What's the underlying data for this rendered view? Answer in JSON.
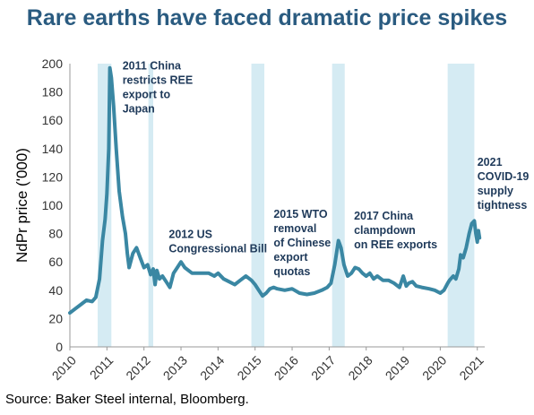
{
  "title": "Rare earths have faced dramatic price spikes",
  "source": "Source: Baker Steel internal, Bloomberg.",
  "chart_data": {
    "type": "line",
    "title": "Rare earths have faced dramatic price spikes",
    "xlabel": "",
    "ylabel": "NdPr price ('000)",
    "xlim": [
      2010,
      2021.2
    ],
    "ylim": [
      0,
      200
    ],
    "y_ticks": [
      0,
      20,
      40,
      60,
      80,
      100,
      120,
      140,
      160,
      180,
      200
    ],
    "x_ticks": [
      "2010",
      "2011",
      "2012",
      "2013",
      "2014",
      "2015",
      "2016",
      "2017",
      "2018",
      "2019",
      "2020",
      "2021"
    ],
    "grid": false,
    "line_color": "#3a87a3",
    "band_color": "#d5ebf3",
    "series": [
      {
        "x": [
          2010.0,
          2010.15,
          2010.3,
          2010.45,
          2010.6,
          2010.7,
          2010.8,
          2010.88,
          2010.95,
          2011.0,
          2011.05,
          2011.08,
          2011.12,
          2011.18,
          2011.25,
          2011.33,
          2011.42,
          2011.5,
          2011.55,
          2011.6,
          2011.7,
          2011.8,
          2011.9,
          2012.0,
          2012.1,
          2012.18,
          2012.25,
          2012.3,
          2012.35,
          2012.42,
          2012.5,
          2012.6,
          2012.7,
          2012.8,
          2012.9,
          2013.0,
          2013.1,
          2013.2,
          2013.3,
          2013.45,
          2013.6,
          2013.75,
          2013.9,
          2014.0,
          2014.15,
          2014.3,
          2014.45,
          2014.6,
          2014.75,
          2014.9,
          2015.0,
          2015.1,
          2015.2,
          2015.3,
          2015.4,
          2015.5,
          2015.6,
          2015.8,
          2016.0,
          2016.2,
          2016.4,
          2016.6,
          2016.8,
          2016.95,
          2017.05,
          2017.15,
          2017.25,
          2017.32,
          2017.4,
          2017.5,
          2017.6,
          2017.7,
          2017.8,
          2017.9,
          2018.0,
          2018.1,
          2018.2,
          2018.3,
          2018.45,
          2018.6,
          2018.75,
          2018.9,
          2019.0,
          2019.08,
          2019.15,
          2019.25,
          2019.35,
          2019.5,
          2019.7,
          2019.85,
          2020.0,
          2020.1,
          2020.2,
          2020.25,
          2020.35,
          2020.42,
          2020.5,
          2020.55,
          2020.62,
          2020.7,
          2020.78,
          2020.85,
          2020.92,
          2020.96,
          2021.0,
          2021.03,
          2021.06
        ],
        "y": [
          24,
          27,
          30,
          33,
          32,
          35,
          48,
          75,
          90,
          108,
          140,
          197,
          190,
          170,
          140,
          110,
          92,
          80,
          66,
          56,
          66,
          70,
          63,
          56,
          58,
          51,
          55,
          44,
          54,
          48,
          50,
          46,
          42,
          52,
          56,
          60,
          56,
          54,
          52,
          52,
          52,
          52,
          50,
          52,
          48,
          46,
          44,
          47,
          50,
          47,
          44,
          40,
          36,
          38,
          41,
          42,
          41,
          40,
          41,
          38,
          37,
          38,
          40,
          42,
          45,
          58,
          75,
          70,
          58,
          50,
          52,
          56,
          55,
          52,
          50,
          52,
          48,
          50,
          47,
          47,
          45,
          42,
          50,
          43,
          45,
          46,
          43,
          42,
          41,
          40,
          38,
          40,
          45,
          47,
          50,
          48,
          55,
          65,
          63,
          70,
          80,
          87,
          89,
          80,
          74,
          82,
          77
        ]
      }
    ],
    "bands": [
      {
        "start": 2010.75,
        "end": 2011.12
      },
      {
        "start": 2012.12,
        "end": 2012.25
      },
      {
        "start": 2014.9,
        "end": 2015.25
      },
      {
        "start": 2017.08,
        "end": 2017.42
      },
      {
        "start": 2020.2,
        "end": 2020.92
      }
    ],
    "annotations": [
      {
        "x": 2011.42,
        "y": 196,
        "lines": [
          "2011 China",
          "restricts REE",
          "export to",
          "Japan"
        ]
      },
      {
        "x": 2012.67,
        "y": 77,
        "lines": [
          "2012 US",
          "Congressional Bill"
        ]
      },
      {
        "x": 2015.5,
        "y": 91,
        "lines": [
          "2015 WTO",
          "removal",
          "of Chinese",
          "export",
          "quotas"
        ]
      },
      {
        "x": 2017.67,
        "y": 90,
        "lines": [
          "2017 China",
          "clampdown",
          "on REE exports"
        ]
      },
      {
        "x": 2021.0,
        "y": 128,
        "lines": [
          "2021",
          "COVID-19",
          "supply",
          "tightness"
        ]
      }
    ]
  }
}
